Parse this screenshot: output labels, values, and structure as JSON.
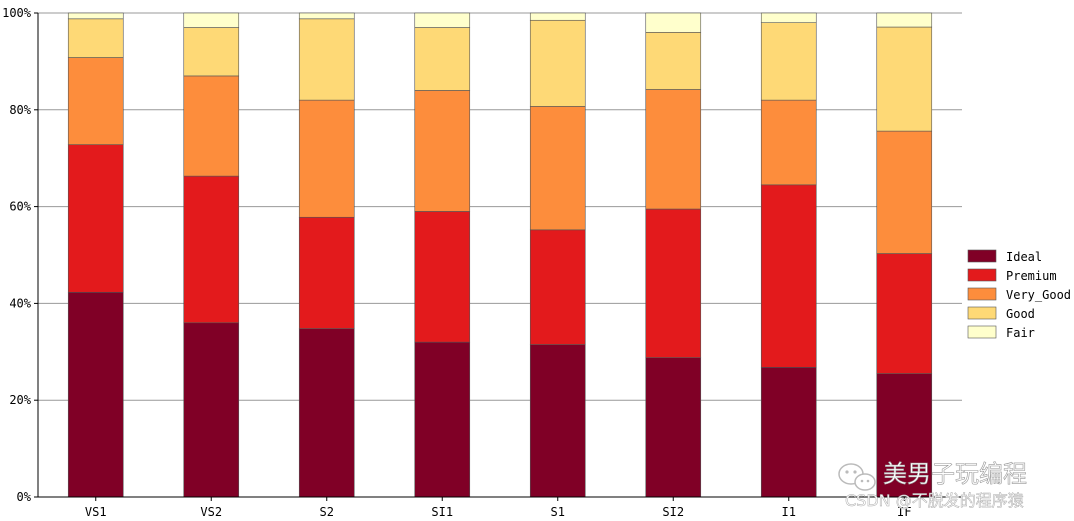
{
  "chart_data": {
    "type": "bar",
    "stacked": true,
    "normalized": true,
    "title": "",
    "xlabel": "",
    "ylabel": "",
    "ylim": [
      0,
      1
    ],
    "yticks": [
      0,
      0.2,
      0.4,
      0.6,
      0.8,
      1.0
    ],
    "ytick_labels": [
      "0%",
      "20%",
      "40%",
      "60%",
      "80%",
      "100%"
    ],
    "grid": "horizontal",
    "legend_position": "right",
    "categories": [
      "VS1",
      "VS2",
      "S2",
      "SI1",
      "S1",
      "SI2",
      "I1",
      "IF"
    ],
    "series": [
      {
        "name": "Ideal",
        "color": "#800026",
        "values": [
          0.423,
          0.36,
          0.348,
          0.32,
          0.315,
          0.288,
          0.268,
          0.255
        ]
      },
      {
        "name": "Premium",
        "color": "#e31a1c",
        "values": [
          0.305,
          0.303,
          0.23,
          0.27,
          0.237,
          0.307,
          0.377,
          0.248
        ]
      },
      {
        "name": "Very_Good",
        "color": "#fd8d3c",
        "values": [
          0.18,
          0.207,
          0.242,
          0.25,
          0.255,
          0.247,
          0.175,
          0.253
        ]
      },
      {
        "name": "Good",
        "color": "#fed976",
        "values": [
          0.08,
          0.1,
          0.168,
          0.13,
          0.178,
          0.118,
          0.16,
          0.215
        ]
      },
      {
        "name": "Fair",
        "color": "#ffffcc",
        "values": [
          0.012,
          0.03,
          0.012,
          0.03,
          0.015,
          0.04,
          0.02,
          0.029
        ]
      }
    ]
  },
  "watermark": {
    "line1": "美男子玩编程",
    "line2": "CSDN @不脱发的程序猿"
  }
}
